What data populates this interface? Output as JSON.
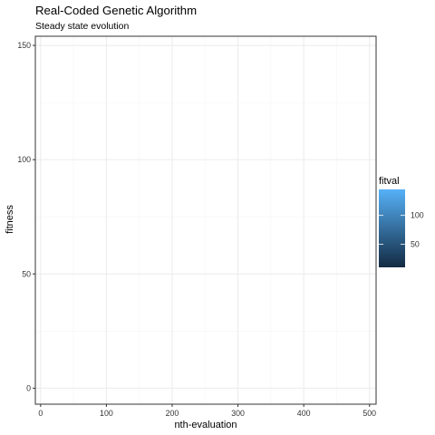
{
  "chart_data": {
    "type": "scatter",
    "title": "Real-Coded Genetic Algorithm",
    "subtitle": "Steady state evolution",
    "xlabel": "nth-evaluation",
    "ylabel": "fitness",
    "xlim": [
      -8,
      510
    ],
    "ylim": [
      -7,
      154
    ],
    "x_ticks": [
      0,
      100,
      200,
      300,
      400,
      500
    ],
    "y_ticks": [
      0,
      50,
      100,
      150
    ],
    "x_tick_labels": [
      "0",
      "100",
      "200",
      "300",
      "400",
      "500"
    ],
    "y_tick_labels": [
      "0",
      "50",
      "100",
      "150"
    ],
    "grid": true,
    "series": [],
    "legend": {
      "title": "fitval",
      "type": "colorbar",
      "position": "right",
      "range": [
        10,
        145
      ],
      "ticks": [
        50,
        100
      ],
      "tick_labels": [
        "50",
        "100"
      ],
      "low_color": "#132B43",
      "high_color": "#56B1F7"
    },
    "colors": {
      "panel_border": "#333333",
      "grid_major": "#ebebeb",
      "grid_minor": "#f5f5f5"
    }
  }
}
